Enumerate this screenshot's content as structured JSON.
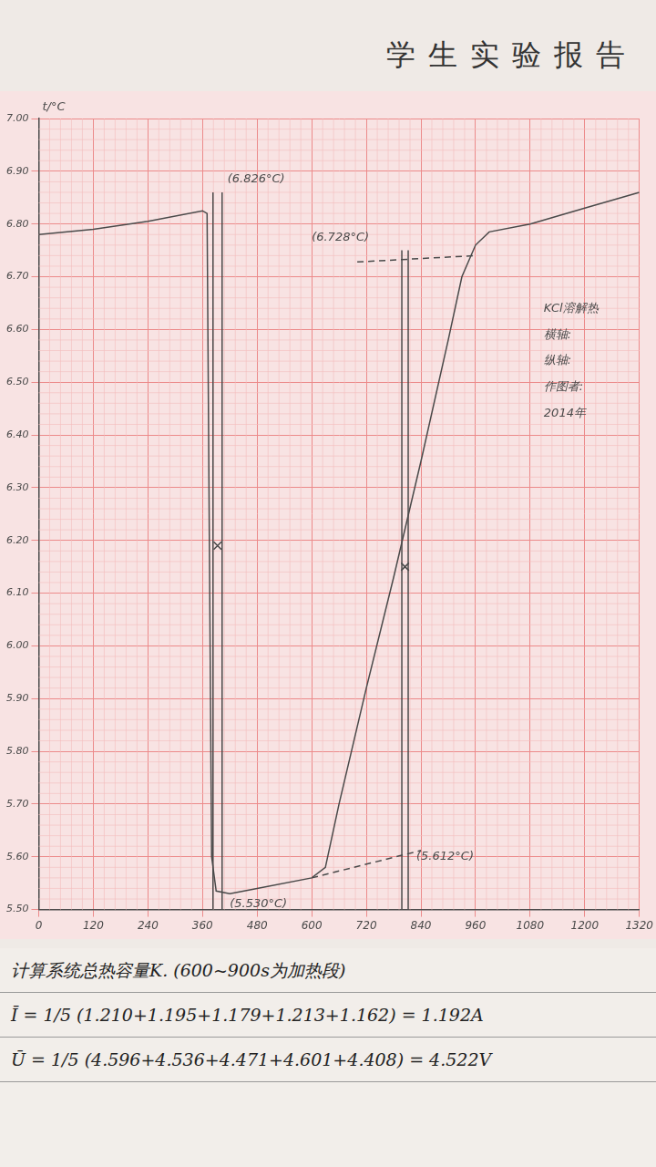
{
  "header": "学生实验报告",
  "chart_data": {
    "type": "line",
    "y_label": "t/°C",
    "xlim": [
      0,
      1320
    ],
    "xticks": [
      0,
      120,
      240,
      360,
      480,
      600,
      720,
      840,
      960,
      1080,
      1200,
      1320
    ],
    "ylim": [
      5.5,
      7.0
    ],
    "yticks": [
      {
        "value": 5.5,
        "label": "5.50"
      },
      {
        "value": 5.6,
        "label": "5.60"
      },
      {
        "value": 5.7,
        "label": "5.70"
      },
      {
        "value": 5.8,
        "label": "5.80"
      },
      {
        "value": 5.9,
        "label": "5.90"
      },
      {
        "value": 6.0,
        "label": "6.00"
      },
      {
        "value": 6.1,
        "label": "6.10"
      },
      {
        "value": 6.2,
        "label": "6.20"
      },
      {
        "value": 6.3,
        "label": "6.30"
      },
      {
        "value": 6.4,
        "label": "6.40"
      },
      {
        "value": 6.5,
        "label": "6.50"
      },
      {
        "value": 6.6,
        "label": "6.60"
      },
      {
        "value": 6.7,
        "label": "6.70"
      },
      {
        "value": 6.8,
        "label": "6.80"
      },
      {
        "value": 6.9,
        "label": "6.90"
      },
      {
        "value": 7.0,
        "label": "7.00"
      }
    ],
    "grid": true,
    "series": [
      {
        "color": "#4a4a4a",
        "line_style": "solid",
        "marker": "none",
        "x": [
          0,
          120,
          240,
          360,
          370,
          375,
          380,
          390,
          420,
          480,
          600,
          630,
          660,
          720,
          780,
          840,
          900,
          930,
          960,
          990,
          1080,
          1200,
          1320
        ],
        "values": [
          6.78,
          6.79,
          6.805,
          6.825,
          6.82,
          6.2,
          5.6,
          5.535,
          5.53,
          5.54,
          5.56,
          5.58,
          5.7,
          5.92,
          6.13,
          6.35,
          6.58,
          6.7,
          6.76,
          6.785,
          6.8,
          6.83,
          6.86
        ]
      },
      {
        "color": "#4a4a4a",
        "line_style": "solid",
        "marker": "none",
        "x": [
          383,
          383
        ],
        "values": [
          5.5,
          6.86
        ]
      },
      {
        "color": "#4a4a4a",
        "line_style": "solid",
        "marker": "none",
        "x": [
          403,
          403
        ],
        "values": [
          5.5,
          6.86
        ]
      },
      {
        "color": "#4a4a4a",
        "line_style": "solid",
        "marker": "none",
        "x": [
          798,
          798
        ],
        "values": [
          5.5,
          6.75
        ]
      },
      {
        "color": "#4a4a4a",
        "line_style": "solid",
        "marker": "none",
        "x": [
          812,
          812
        ],
        "values": [
          5.5,
          6.75
        ]
      },
      {
        "color": "#4a4a4a",
        "line_style": "dashed",
        "marker": "none",
        "x": [
          700,
          960
        ],
        "values": [
          6.728,
          6.74
        ]
      },
      {
        "color": "#4a4a4a",
        "line_style": "dashed",
        "marker": "none",
        "x": [
          600,
          840
        ],
        "values": [
          5.56,
          5.612
        ]
      },
      {
        "color": "#4a4a4a",
        "line_style": "none",
        "marker": "cross",
        "x": [
          393,
          805
        ],
        "values": [
          6.19,
          6.15
        ]
      }
    ],
    "annotations": [
      {
        "text": "(6.826°C)",
        "x": 415,
        "y": 6.885
      },
      {
        "text": "(6.728°C)",
        "x": 600,
        "y": 6.775
      },
      {
        "text": "(5.530°C)",
        "x": 420,
        "y": 5.51
      },
      {
        "text": "(5.612°C)",
        "x": 830,
        "y": 5.6
      },
      {
        "text": "KCl溶解热",
        "x": 1110,
        "y": 6.64
      },
      {
        "text": "横轴:",
        "x": 1110,
        "y": 6.59
      },
      {
        "text": "纵轴:",
        "x": 1110,
        "y": 6.54
      },
      {
        "text": "作图者:",
        "x": 1110,
        "y": 6.49
      },
      {
        "text": "2014年",
        "x": 1110,
        "y": 6.44
      }
    ]
  },
  "notes": [
    "计算系统总热容量K.     (600~900s为加热段)",
    "Ī = 1/5 (1.210+1.195+1.179+1.213+1.162) = 1.192A",
    "Ū = 1/5 (4.596+4.536+4.471+4.601+4.408) = 4.522V"
  ]
}
